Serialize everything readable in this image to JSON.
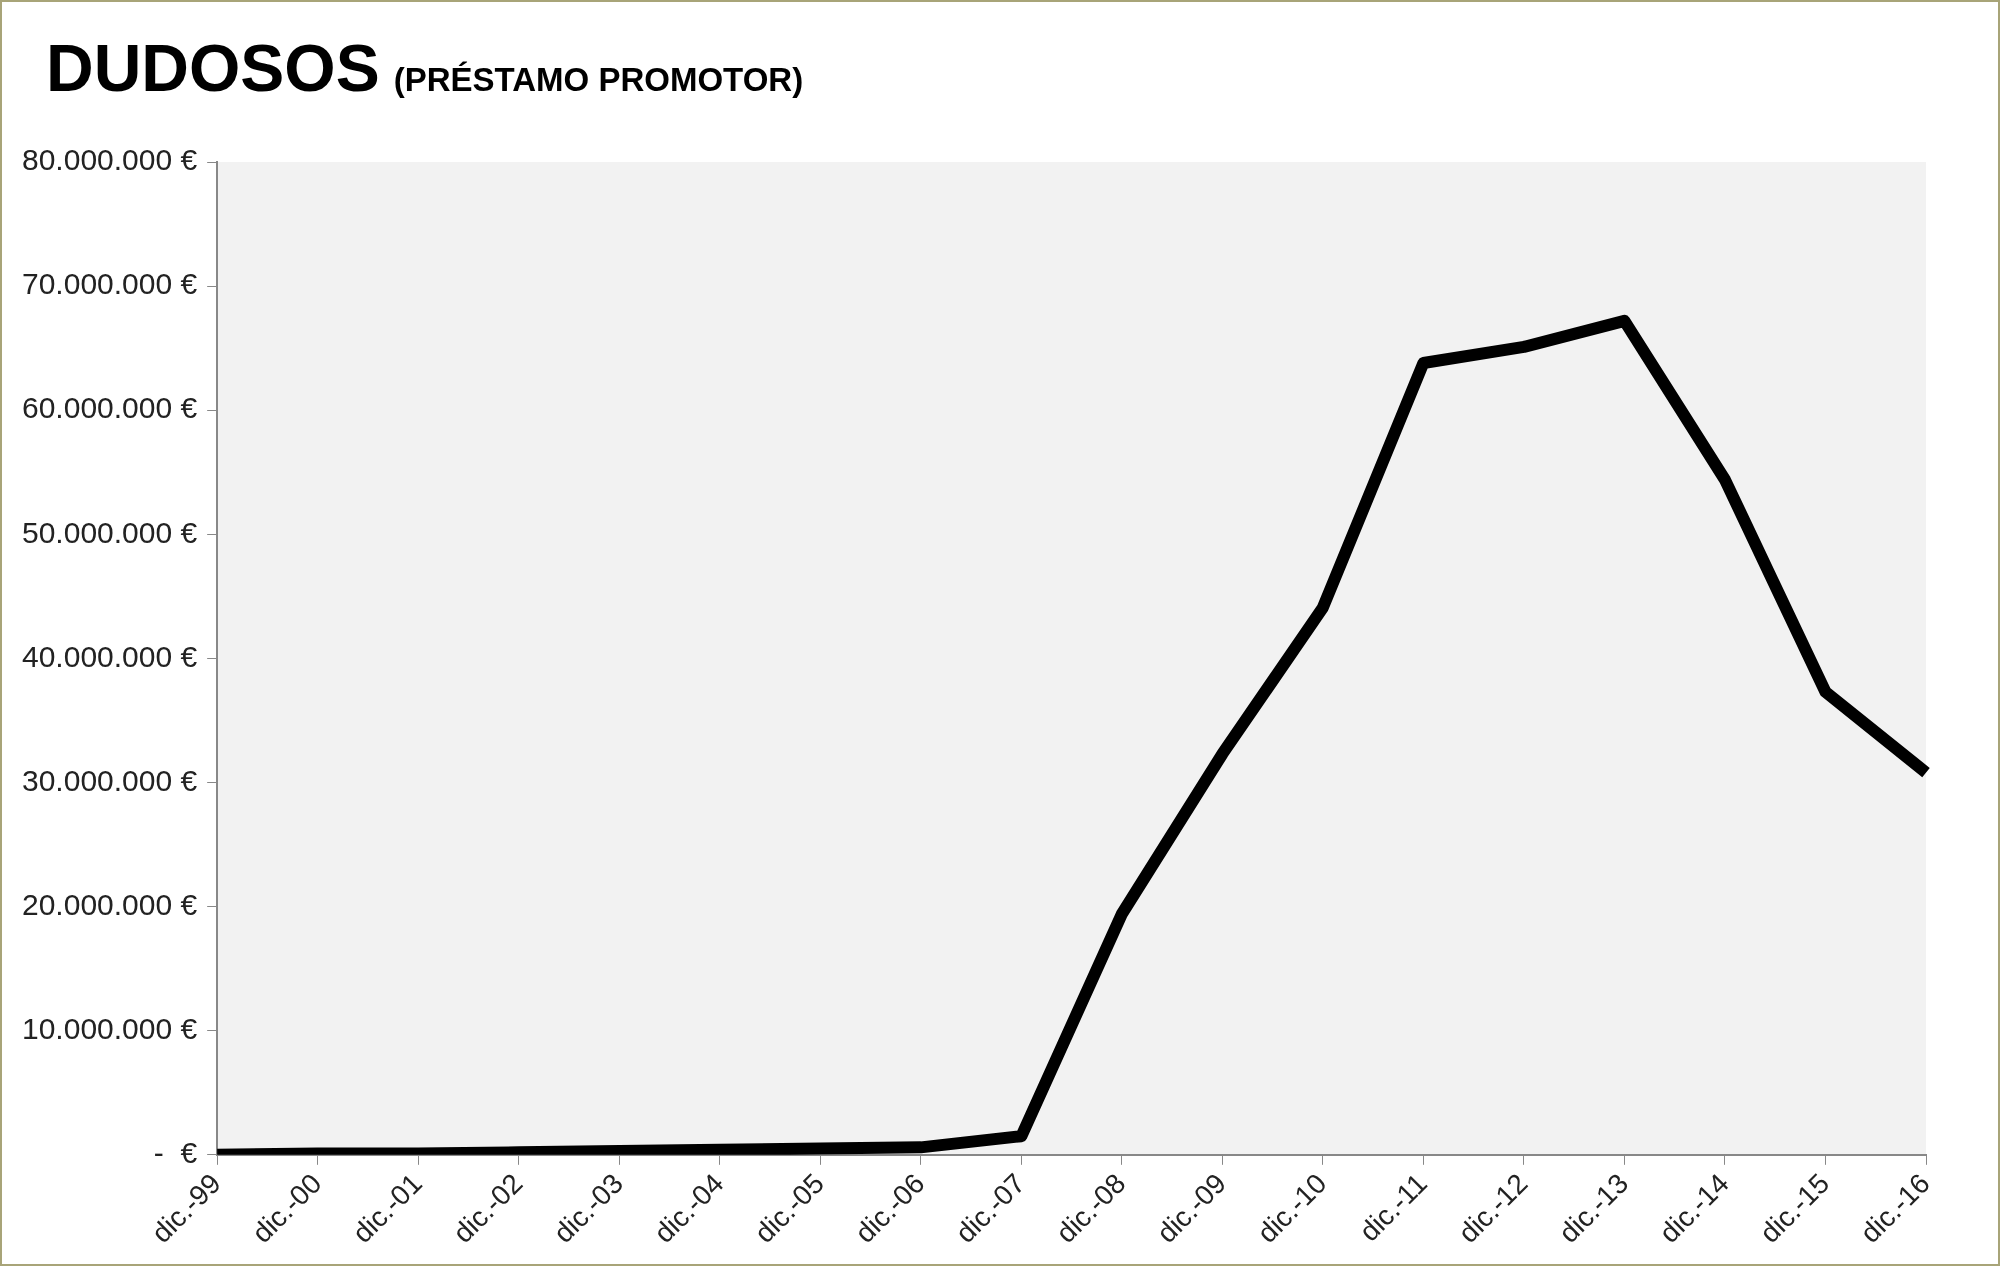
{
  "chart_data": {
    "type": "line",
    "title": "DUDOSOS",
    "subtitle": "(PRÉSTAMO PROMOTOR)",
    "categories": [
      "dic.-99",
      "dic.-00",
      "dic.-01",
      "dic.-02",
      "dic.-03",
      "dic.-04",
      "dic.-05",
      "dic.-06",
      "dic.-07",
      "dic.-08",
      "dic.-09",
      "dic.-10",
      "dic.-11",
      "dic.-12",
      "dic.-13",
      "dic.-14",
      "dic.-15",
      "dic.-16"
    ],
    "series": [
      {
        "color": "#000000",
        "values": [
          0,
          100000.0,
          100000.0,
          200000.0,
          300000.0,
          400000.0,
          500000.0,
          600000.0,
          1500000.0,
          19400000.0,
          32300000.0,
          44100000.0,
          63800000.0,
          65100000.0,
          67200000.0,
          54400000.0,
          37300000.0,
          30800000.0
        ]
      }
    ],
    "ylim": [
      0,
      80000000
    ],
    "yticks": [
      {
        "value": 0,
        "label": "-  €"
      },
      {
        "value": 10000000,
        "label": "10.000.000 €"
      },
      {
        "value": 20000000,
        "label": "20.000.000 €"
      },
      {
        "value": 30000000,
        "label": "30.000.000 €"
      },
      {
        "value": 40000000,
        "label": "40.000.000 €"
      },
      {
        "value": 50000000,
        "label": "50.000.000 €"
      },
      {
        "value": 60000000,
        "label": "60.000.000 €"
      },
      {
        "value": 70000000,
        "label": "70.000.000 €"
      },
      {
        "value": 80000000,
        "label": "80.000.000 €"
      }
    ],
    "grid": false,
    "legend": false,
    "marker": "none",
    "line_style": "solid"
  }
}
